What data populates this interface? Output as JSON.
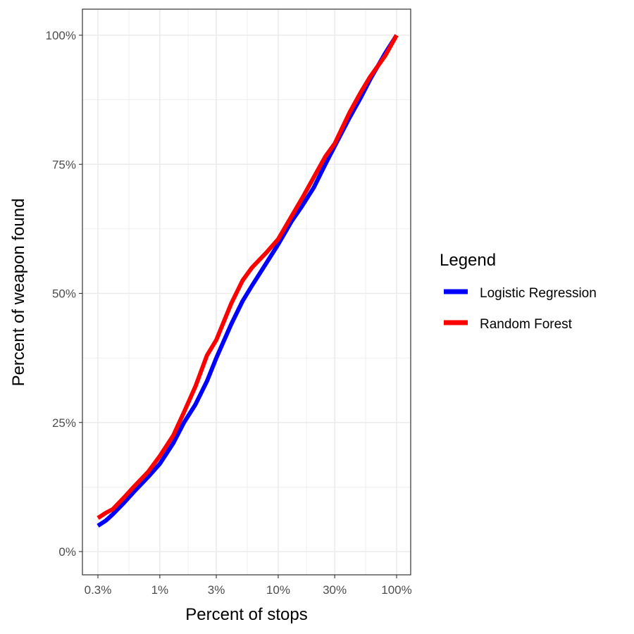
{
  "chart_data": {
    "type": "line",
    "xlabel": "Percent of stops",
    "ylabel": "Percent of weapon found",
    "x_scale": "log",
    "xlim": [
      0.3,
      100
    ],
    "ylim": [
      0,
      100
    ],
    "x_ticks": [
      {
        "value": 0.3,
        "label": "0.3%"
      },
      {
        "value": 1,
        "label": "1%"
      },
      {
        "value": 3,
        "label": "3%"
      },
      {
        "value": 10,
        "label": "10%"
      },
      {
        "value": 30,
        "label": "30%"
      },
      {
        "value": 100,
        "label": "100%"
      }
    ],
    "y_ticks": [
      {
        "value": 0,
        "label": "0%"
      },
      {
        "value": 25,
        "label": "25%"
      },
      {
        "value": 50,
        "label": "50%"
      },
      {
        "value": 75,
        "label": "75%"
      },
      {
        "value": 100,
        "label": "100%"
      }
    ],
    "grid": true,
    "legend": {
      "title": "Legend",
      "position": "right"
    },
    "series": [
      {
        "name": "Logistic Regression",
        "color": "#0000ff",
        "points": [
          [
            0.3,
            5
          ],
          [
            0.35,
            6
          ],
          [
            0.4,
            7.2
          ],
          [
            0.5,
            9.5
          ],
          [
            0.6,
            11.5
          ],
          [
            0.8,
            14.5
          ],
          [
            1,
            17
          ],
          [
            1.3,
            21
          ],
          [
            1.6,
            25
          ],
          [
            2,
            28.5
          ],
          [
            2.5,
            33
          ],
          [
            3,
            37.5
          ],
          [
            4,
            44
          ],
          [
            5,
            48.5
          ],
          [
            6,
            51.5
          ],
          [
            8,
            56
          ],
          [
            10,
            59.5
          ],
          [
            13,
            64
          ],
          [
            16,
            67
          ],
          [
            20,
            70.5
          ],
          [
            25,
            75
          ],
          [
            30,
            78.5
          ],
          [
            40,
            84
          ],
          [
            50,
            88
          ],
          [
            60,
            91.5
          ],
          [
            80,
            96.5
          ],
          [
            100,
            100
          ]
        ]
      },
      {
        "name": "Random Forest",
        "color": "#ff0000",
        "points": [
          [
            0.3,
            6.5
          ],
          [
            0.35,
            7.5
          ],
          [
            0.4,
            8.2
          ],
          [
            0.5,
            10.5
          ],
          [
            0.6,
            12.5
          ],
          [
            0.8,
            15.5
          ],
          [
            1,
            18.5
          ],
          [
            1.3,
            22.5
          ],
          [
            1.6,
            27
          ],
          [
            2,
            32
          ],
          [
            2.5,
            38
          ],
          [
            3,
            41
          ],
          [
            4,
            48
          ],
          [
            5,
            52.5
          ],
          [
            6,
            55
          ],
          [
            8,
            58
          ],
          [
            10,
            60.5
          ],
          [
            13,
            65
          ],
          [
            16,
            68.5
          ],
          [
            20,
            72.5
          ],
          [
            25,
            76.5
          ],
          [
            30,
            79
          ],
          [
            40,
            85
          ],
          [
            50,
            89
          ],
          [
            60,
            92
          ],
          [
            80,
            96
          ],
          [
            100,
            100
          ]
        ]
      }
    ]
  }
}
